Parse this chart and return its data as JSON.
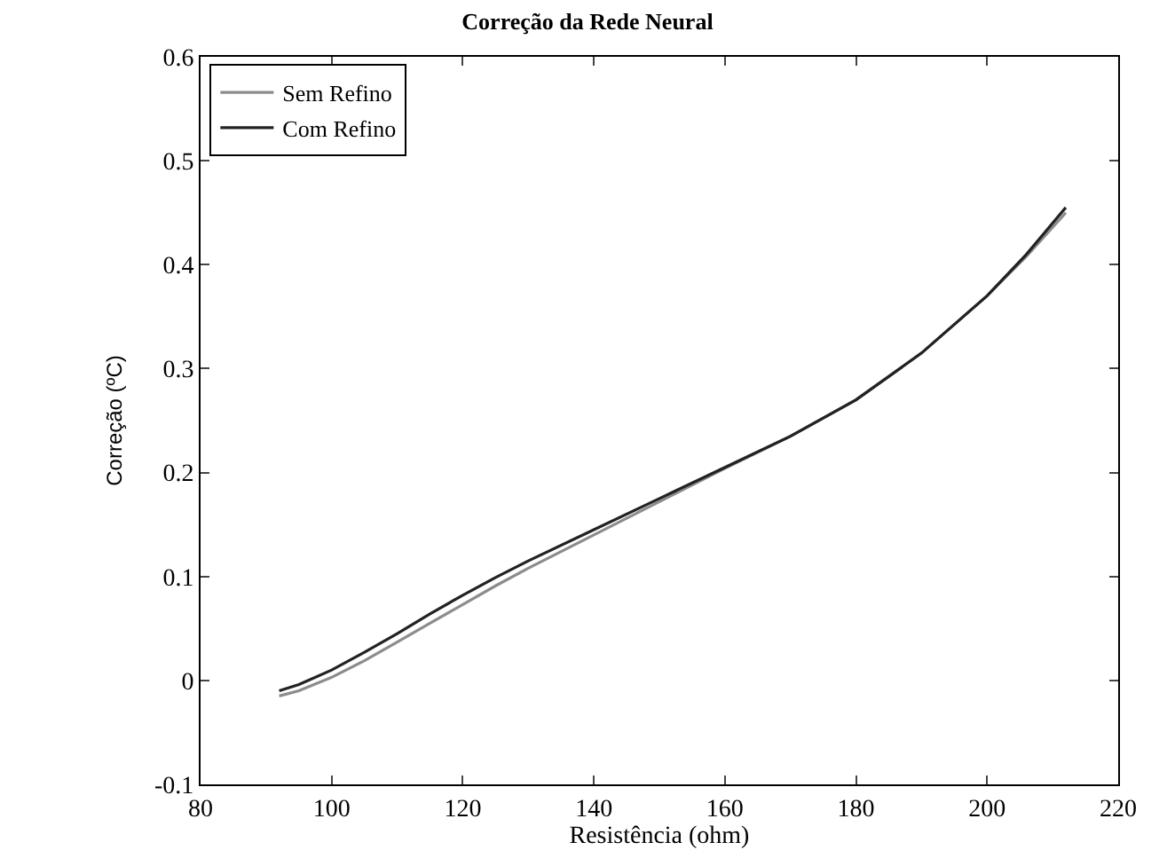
{
  "chart_data": {
    "type": "line",
    "title": "Correção da Rede Neural",
    "xlabel": "Resistência (ohm)",
    "ylabel": "Correção (ºC)",
    "xlim": [
      80,
      220
    ],
    "xticks": [
      80,
      100,
      120,
      140,
      160,
      180,
      200,
      220
    ],
    "ylim": [
      -0.1,
      0.6
    ],
    "yticks": [
      -0.1,
      0,
      0.1,
      0.2,
      0.3,
      0.4,
      0.5,
      0.6
    ],
    "legend": "top left",
    "marker": "none",
    "line_style": "solid",
    "series": [
      {
        "name": "Sem Refino",
        "color": "#8c8c8c",
        "x": [
          92,
          95,
          100,
          105,
          110,
          115,
          120,
          125,
          130,
          140,
          150,
          160,
          170,
          180,
          190,
          200,
          206,
          212
        ],
        "values": [
          -0.015,
          -0.01,
          0.003,
          0.019,
          0.037,
          0.055,
          0.073,
          0.091,
          0.108,
          0.14,
          0.172,
          0.204,
          0.235,
          0.27,
          0.315,
          0.37,
          0.408,
          0.45
        ]
      },
      {
        "name": "Com Refino",
        "color": "#222222",
        "x": [
          92,
          95,
          100,
          105,
          110,
          115,
          120,
          125,
          130,
          140,
          150,
          160,
          170,
          180,
          190,
          200,
          206,
          212
        ],
        "values": [
          -0.01,
          -0.004,
          0.01,
          0.027,
          0.045,
          0.064,
          0.082,
          0.099,
          0.115,
          0.145,
          0.175,
          0.205,
          0.235,
          0.27,
          0.315,
          0.37,
          0.41,
          0.455
        ]
      }
    ]
  }
}
